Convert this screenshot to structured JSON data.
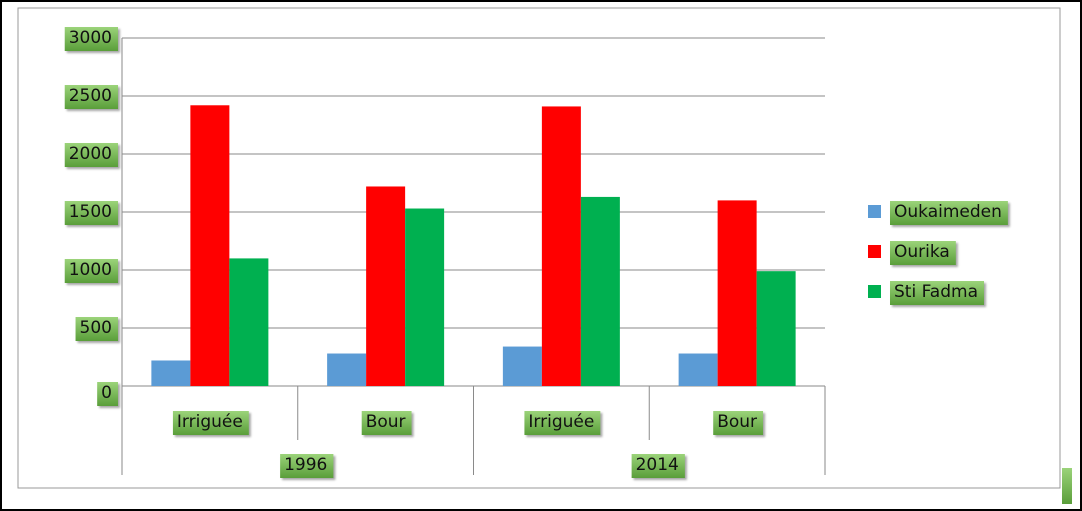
{
  "chart_data": {
    "type": "bar",
    "groups": [
      "1996",
      "2014"
    ],
    "categories": [
      "Irriguée",
      "Bour",
      "Irriguée",
      "Bour"
    ],
    "series": [
      {
        "name": "Oukaimeden",
        "color": "#5b9bd5",
        "values": [
          220,
          280,
          340,
          280
        ]
      },
      {
        "name": "Ourika",
        "color": "#ff0000",
        "values": [
          2420,
          1720,
          2410,
          1600
        ]
      },
      {
        "name": "Sti Fadma",
        "color": "#00b050",
        "values": [
          1100,
          1530,
          1630,
          990
        ]
      }
    ],
    "ylim": [
      0,
      3000
    ],
    "yticks": [
      0,
      500,
      1000,
      1500,
      2000,
      2500,
      3000
    ],
    "grid": true,
    "legend": "right"
  }
}
